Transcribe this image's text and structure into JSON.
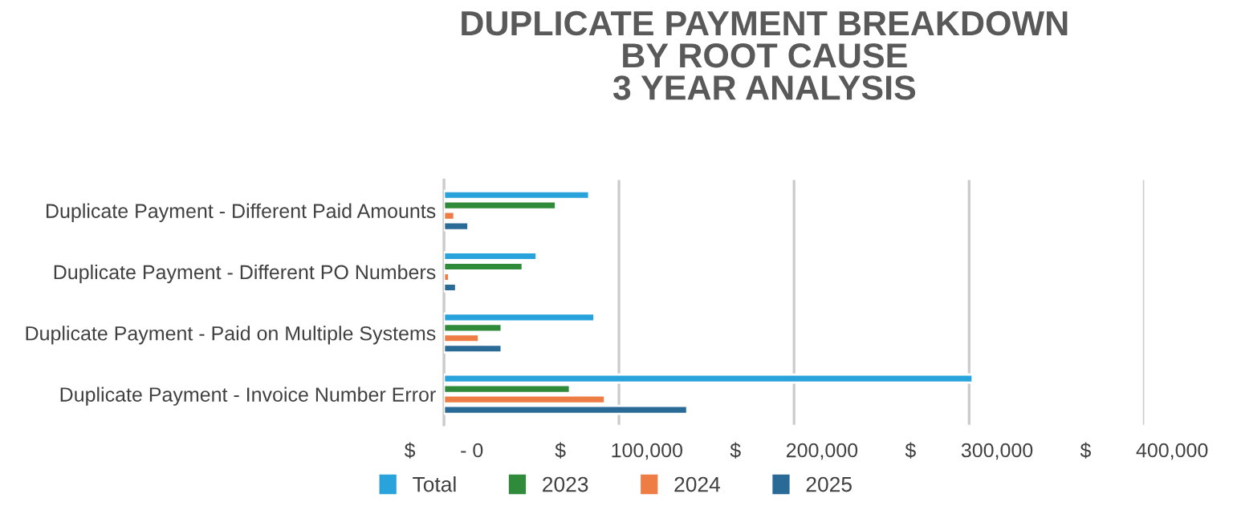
{
  "chart_data": {
    "type": "bar",
    "orientation": "horizontal",
    "title": "DUPLICATE PAYMENT BREAKDOWN\nBY ROOT CAUSE\n3 YEAR ANALYSIS",
    "categories": [
      "Duplicate Payment - Different Paid Amounts",
      "Duplicate Payment - Different PO Numbers",
      "Duplicate Payment - Paid on Multiple Systems",
      "Duplicate Payment - Invoice Number Error"
    ],
    "series": [
      {
        "name": "Total",
        "color": "#29a3dc",
        "values": [
          83000,
          53000,
          86000,
          302000
        ]
      },
      {
        "name": "2023",
        "color": "#2f8a3a",
        "values": [
          64000,
          45000,
          33000,
          72000
        ]
      },
      {
        "name": "2024",
        "color": "#ee7d45",
        "values": [
          6000,
          3000,
          20000,
          92000
        ]
      },
      {
        "name": "2025",
        "color": "#2a6a96",
        "values": [
          14000,
          7000,
          33000,
          139000
        ]
      }
    ],
    "xlim": [
      0,
      400000
    ],
    "xticks": [
      {
        "value": 0,
        "label": "$        - 0"
      },
      {
        "value": 100000,
        "label": "$        100,000"
      },
      {
        "value": 200000,
        "label": "$        200,000"
      },
      {
        "value": 300000,
        "label": "$        300,000"
      },
      {
        "value": 400000,
        "label": "$        400,000"
      }
    ],
    "grid": "x",
    "legend": "bottom"
  }
}
